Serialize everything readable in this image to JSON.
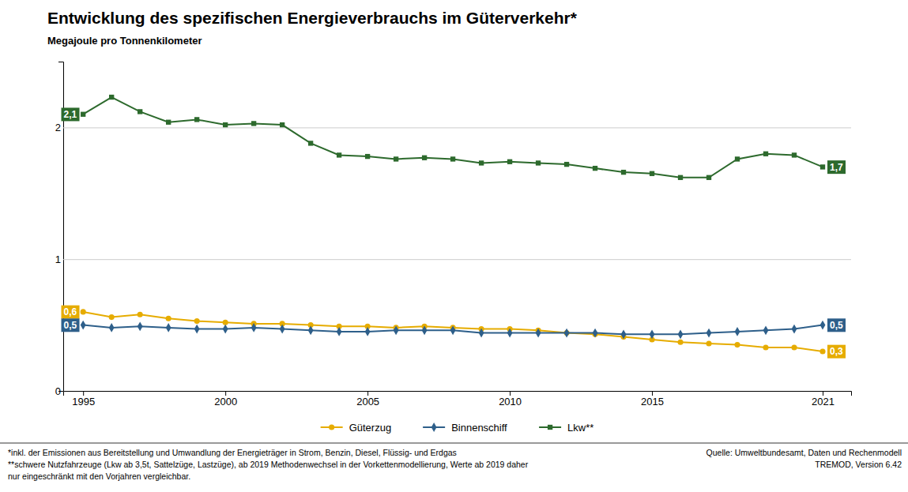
{
  "chart_data": {
    "type": "line",
    "title": "Entwicklung des spezifischen Energieverbrauchs im Güterverkehr*",
    "ylabel": "Megajoule pro Tonnenkilometer",
    "x": [
      1995,
      1996,
      1997,
      1998,
      1999,
      2000,
      2001,
      2002,
      2003,
      2004,
      2005,
      2006,
      2007,
      2008,
      2009,
      2010,
      2011,
      2012,
      2013,
      2014,
      2015,
      2016,
      2017,
      2018,
      2019,
      2020,
      2021
    ],
    "series": [
      {
        "name": "Güterzug",
        "color": "#e6ac00",
        "marker": "circle",
        "values": [
          0.6,
          0.56,
          0.58,
          0.55,
          0.53,
          0.52,
          0.51,
          0.51,
          0.5,
          0.49,
          0.49,
          0.48,
          0.49,
          0.48,
          0.47,
          0.47,
          0.46,
          0.44,
          0.43,
          0.41,
          0.39,
          0.37,
          0.36,
          0.35,
          0.33,
          0.33,
          0.3
        ],
        "value_labels": [
          "0,6",
          null,
          null,
          null,
          null,
          null,
          null,
          null,
          null,
          null,
          null,
          null,
          null,
          null,
          null,
          null,
          null,
          null,
          null,
          null,
          null,
          null,
          null,
          null,
          null,
          null,
          "0,3"
        ]
      },
      {
        "name": "Binnenschiff",
        "color": "#2e5f8a",
        "marker": "diamond",
        "values": [
          0.5,
          0.48,
          0.49,
          0.48,
          0.47,
          0.47,
          0.48,
          0.47,
          0.46,
          0.45,
          0.45,
          0.46,
          0.46,
          0.46,
          0.44,
          0.44,
          0.44,
          0.44,
          0.44,
          0.43,
          0.43,
          0.43,
          0.44,
          0.45,
          0.46,
          0.47,
          0.5
        ],
        "value_labels": [
          "0,5",
          null,
          null,
          null,
          null,
          null,
          null,
          null,
          null,
          null,
          null,
          null,
          null,
          null,
          null,
          null,
          null,
          null,
          null,
          null,
          null,
          null,
          null,
          null,
          null,
          null,
          "0,5"
        ]
      },
      {
        "name": "Lkw**",
        "color": "#2d6a2d",
        "marker": "square",
        "values": [
          2.1,
          2.23,
          2.12,
          2.04,
          2.06,
          2.02,
          2.03,
          2.02,
          1.88,
          1.79,
          1.78,
          1.76,
          1.77,
          1.76,
          1.73,
          1.74,
          1.73,
          1.72,
          1.69,
          1.66,
          1.65,
          1.62,
          1.62,
          1.76,
          1.8,
          1.79,
          1.7
        ],
        "value_labels": [
          "2,1",
          null,
          null,
          null,
          null,
          null,
          null,
          null,
          null,
          null,
          null,
          null,
          null,
          null,
          null,
          null,
          null,
          null,
          null,
          null,
          null,
          null,
          null,
          null,
          null,
          null,
          "1,7"
        ]
      }
    ],
    "xlim": [
      1994.3,
      2022.0
    ],
    "xticks": [
      1995,
      2000,
      2005,
      2010,
      2015,
      2021
    ],
    "ylim": [
      0,
      2.5
    ],
    "yticks": [
      0,
      1,
      2
    ],
    "grid": true,
    "legend": "bottom",
    "footnotes": [
      "*inkl. der Emissionen aus Bereitstellung und Umwandlung der Energieträger in Strom, Benzin, Diesel, Flüssig- und Erdgas",
      "**schwere Nutzfahrzeuge (Lkw ab 3,5t, Sattelzüge, Lastzüge), ab 2019 Methodenwechsel in der Vorkettenmodellierung, Werte ab 2019 daher",
      "nur eingeschränkt mit den Vorjahren vergleichbar."
    ],
    "source": "Quelle:  Umweltbundesamt, Daten und Rechenmodell\nTREMOD, Version 6.42"
  }
}
